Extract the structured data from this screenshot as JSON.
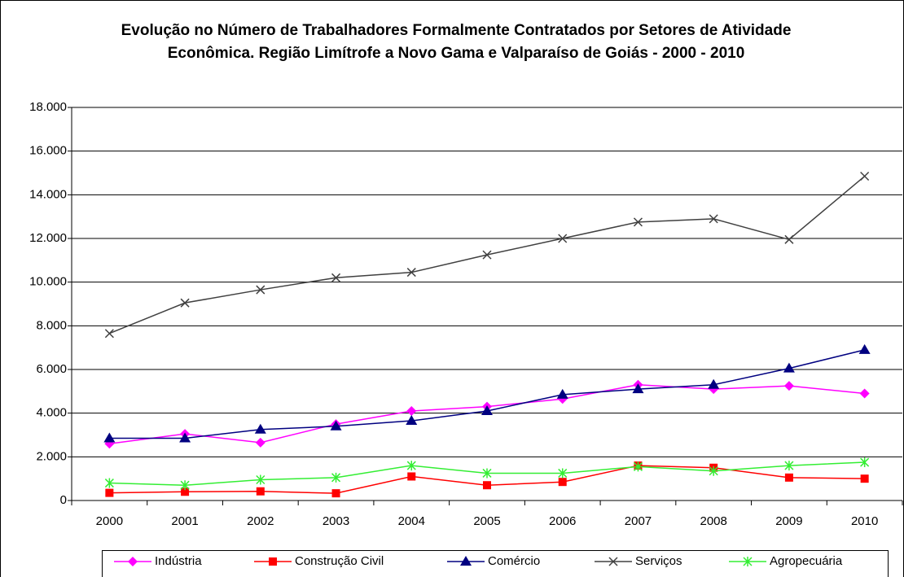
{
  "chart_data": {
    "type": "line",
    "title": "Evolução no Número de Trabalhadores Formalmente Contratados por Setores de Atividade Econômica. Região Limítrofe a Novo Gama e Valparaíso de Goiás - 2000 - 2010",
    "categories": [
      "2000",
      "2001",
      "2002",
      "2003",
      "2004",
      "2005",
      "2006",
      "2007",
      "2008",
      "2009",
      "2010"
    ],
    "series": [
      {
        "name": "Indústria",
        "color": "#ff00ff",
        "marker": "diamond",
        "values": [
          2600,
          3050,
          2650,
          3500,
          4100,
          4300,
          4650,
          5300,
          5100,
          5250,
          4900
        ]
      },
      {
        "name": "Construção Civil",
        "color": "#ff0000",
        "marker": "square",
        "values": [
          350,
          400,
          420,
          330,
          1100,
          700,
          850,
          1600,
          1500,
          1050,
          1000
        ]
      },
      {
        "name": "Comércio",
        "color": "#000080",
        "marker": "triangle",
        "values": [
          2850,
          2850,
          3250,
          3400,
          3650,
          4100,
          4850,
          5100,
          5300,
          6050,
          6900
        ]
      },
      {
        "name": "Serviços",
        "color": "#404040",
        "marker": "x",
        "values": [
          7650,
          9050,
          9650,
          10200,
          10450,
          11250,
          12000,
          12750,
          12900,
          11950,
          14850
        ]
      },
      {
        "name": "Agropecuária",
        "color": "#33ee33",
        "marker": "star",
        "values": [
          800,
          700,
          950,
          1050,
          1600,
          1250,
          1250,
          1550,
          1350,
          1600,
          1750
        ]
      }
    ],
    "ylim": [
      0,
      18000
    ],
    "yticks": [
      0,
      {
        "value": 2000,
        "label": "2.000"
      },
      {
        "value": 4000,
        "label": "4.000"
      },
      {
        "value": 6000,
        "label": "6.000"
      },
      {
        "value": 8000,
        "label": "8.000"
      },
      {
        "value": 10000,
        "label": "10.000"
      },
      {
        "value": 12000,
        "label": "12.000"
      },
      {
        "value": 14000,
        "label": "14.000"
      },
      {
        "value": 16000,
        "label": "16.000"
      },
      {
        "value": 18000,
        "label": "18.000"
      }
    ],
    "grid": true,
    "legend": "bottom"
  }
}
